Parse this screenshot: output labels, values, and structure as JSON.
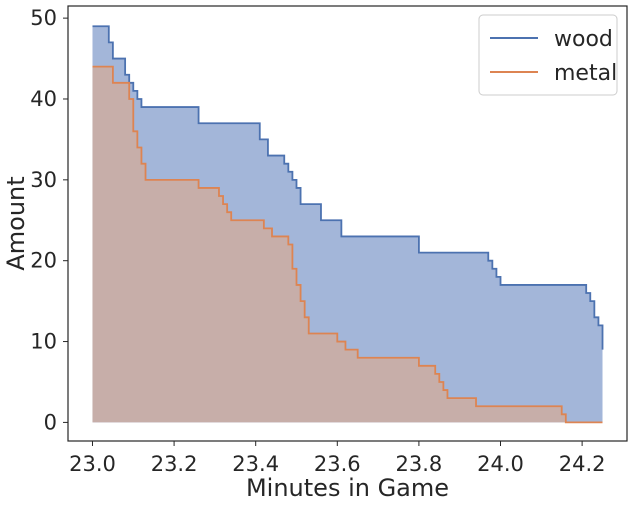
{
  "chart_data": {
    "type": "area",
    "title": "",
    "xlabel": "Minutes in Game",
    "ylabel": "Amount",
    "xlim": [
      22.94,
      24.31
    ],
    "ylim": [
      -2.3,
      51.5
    ],
    "xticks": [
      "23.0",
      "23.2",
      "23.4",
      "23.6",
      "23.8",
      "24.0",
      "24.2"
    ],
    "yticks": [
      "0",
      "10",
      "20",
      "30",
      "40",
      "50"
    ],
    "grid": false,
    "legend_position": "top-right",
    "series": [
      {
        "name": "wood",
        "color": "#4c72b0",
        "fill": "#a3b6d9",
        "steps": [
          [
            23.0,
            49
          ],
          [
            23.04,
            47
          ],
          [
            23.05,
            45
          ],
          [
            23.08,
            43
          ],
          [
            23.09,
            42
          ],
          [
            23.1,
            41
          ],
          [
            23.11,
            40
          ],
          [
            23.12,
            39
          ],
          [
            23.26,
            37
          ],
          [
            23.41,
            35
          ],
          [
            23.43,
            33
          ],
          [
            23.47,
            32
          ],
          [
            23.48,
            31
          ],
          [
            23.49,
            30
          ],
          [
            23.5,
            29
          ],
          [
            23.51,
            27
          ],
          [
            23.56,
            25
          ],
          [
            23.61,
            23
          ],
          [
            23.8,
            21
          ],
          [
            23.97,
            20
          ],
          [
            23.98,
            19
          ],
          [
            23.99,
            18
          ],
          [
            24.0,
            17
          ],
          [
            24.21,
            16
          ],
          [
            24.22,
            15
          ],
          [
            24.23,
            13
          ],
          [
            24.24,
            12
          ],
          [
            24.25,
            11
          ],
          [
            24.25,
            9
          ]
        ],
        "end_x": 24.25
      },
      {
        "name": "metal",
        "color": "#dd8452",
        "fill": "#c9aea6",
        "steps": [
          [
            23.0,
            44
          ],
          [
            23.05,
            42
          ],
          [
            23.09,
            40
          ],
          [
            23.1,
            36
          ],
          [
            23.11,
            34
          ],
          [
            23.12,
            32
          ],
          [
            23.13,
            30
          ],
          [
            23.26,
            29
          ],
          [
            23.31,
            28
          ],
          [
            23.32,
            27
          ],
          [
            23.33,
            26
          ],
          [
            23.34,
            25
          ],
          [
            23.42,
            24
          ],
          [
            23.44,
            23
          ],
          [
            23.48,
            22
          ],
          [
            23.49,
            19
          ],
          [
            23.5,
            17
          ],
          [
            23.51,
            15
          ],
          [
            23.52,
            13
          ],
          [
            23.53,
            11
          ],
          [
            23.6,
            10
          ],
          [
            23.62,
            9
          ],
          [
            23.65,
            8
          ],
          [
            23.8,
            7
          ],
          [
            23.84,
            6
          ],
          [
            23.85,
            5
          ],
          [
            23.86,
            4
          ],
          [
            23.87,
            3
          ],
          [
            23.94,
            2
          ],
          [
            24.15,
            1
          ],
          [
            24.16,
            0
          ]
        ],
        "end_x": 24.25
      }
    ]
  }
}
